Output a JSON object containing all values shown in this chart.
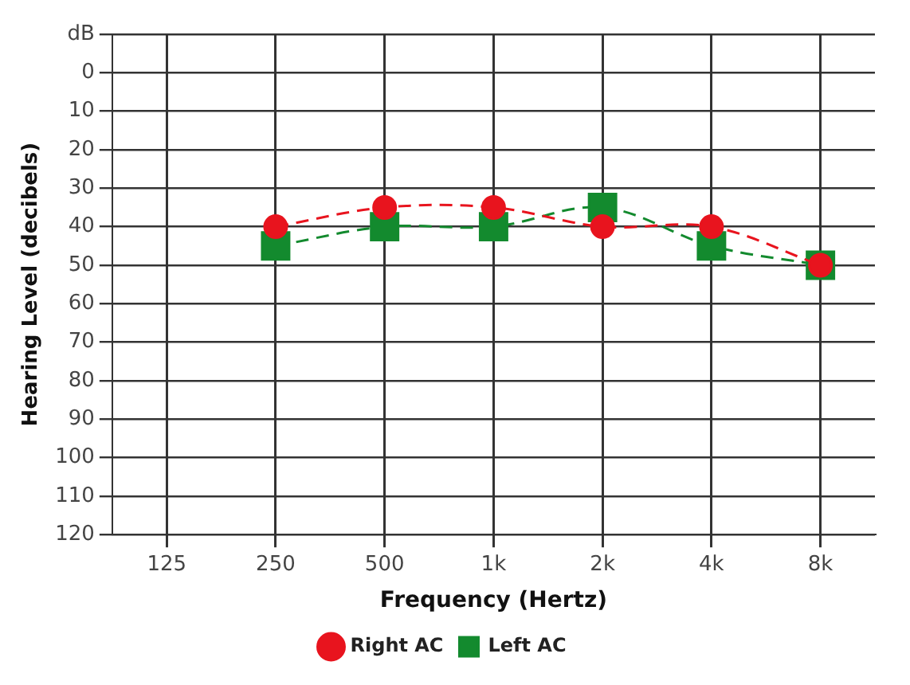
{
  "chart_data": {
    "type": "line",
    "xlabel": "Frequency (Hertz)",
    "ylabel": "Hearing Level (decibels)",
    "categories": [
      "125",
      "250",
      "500",
      "1k",
      "2k",
      "4k",
      "8k"
    ],
    "series": [
      {
        "name": "Right AC",
        "color": "#e8141e",
        "values": [
          null,
          40,
          35,
          35,
          40,
          40,
          50
        ],
        "marker": "circle",
        "line_style": "dashed"
      },
      {
        "name": "Left AC",
        "color": "#138a2e",
        "values": [
          null,
          45,
          40,
          40,
          35,
          45,
          50
        ],
        "marker": "square",
        "line_style": "dashed"
      }
    ],
    "ylim": [
      120,
      -10
    ],
    "yticks": [
      {
        "value": -10,
        "label": "dB"
      },
      0,
      10,
      20,
      30,
      40,
      50,
      60,
      70,
      80,
      90,
      100,
      110,
      120
    ],
    "grid": true,
    "legend": "bottom"
  }
}
